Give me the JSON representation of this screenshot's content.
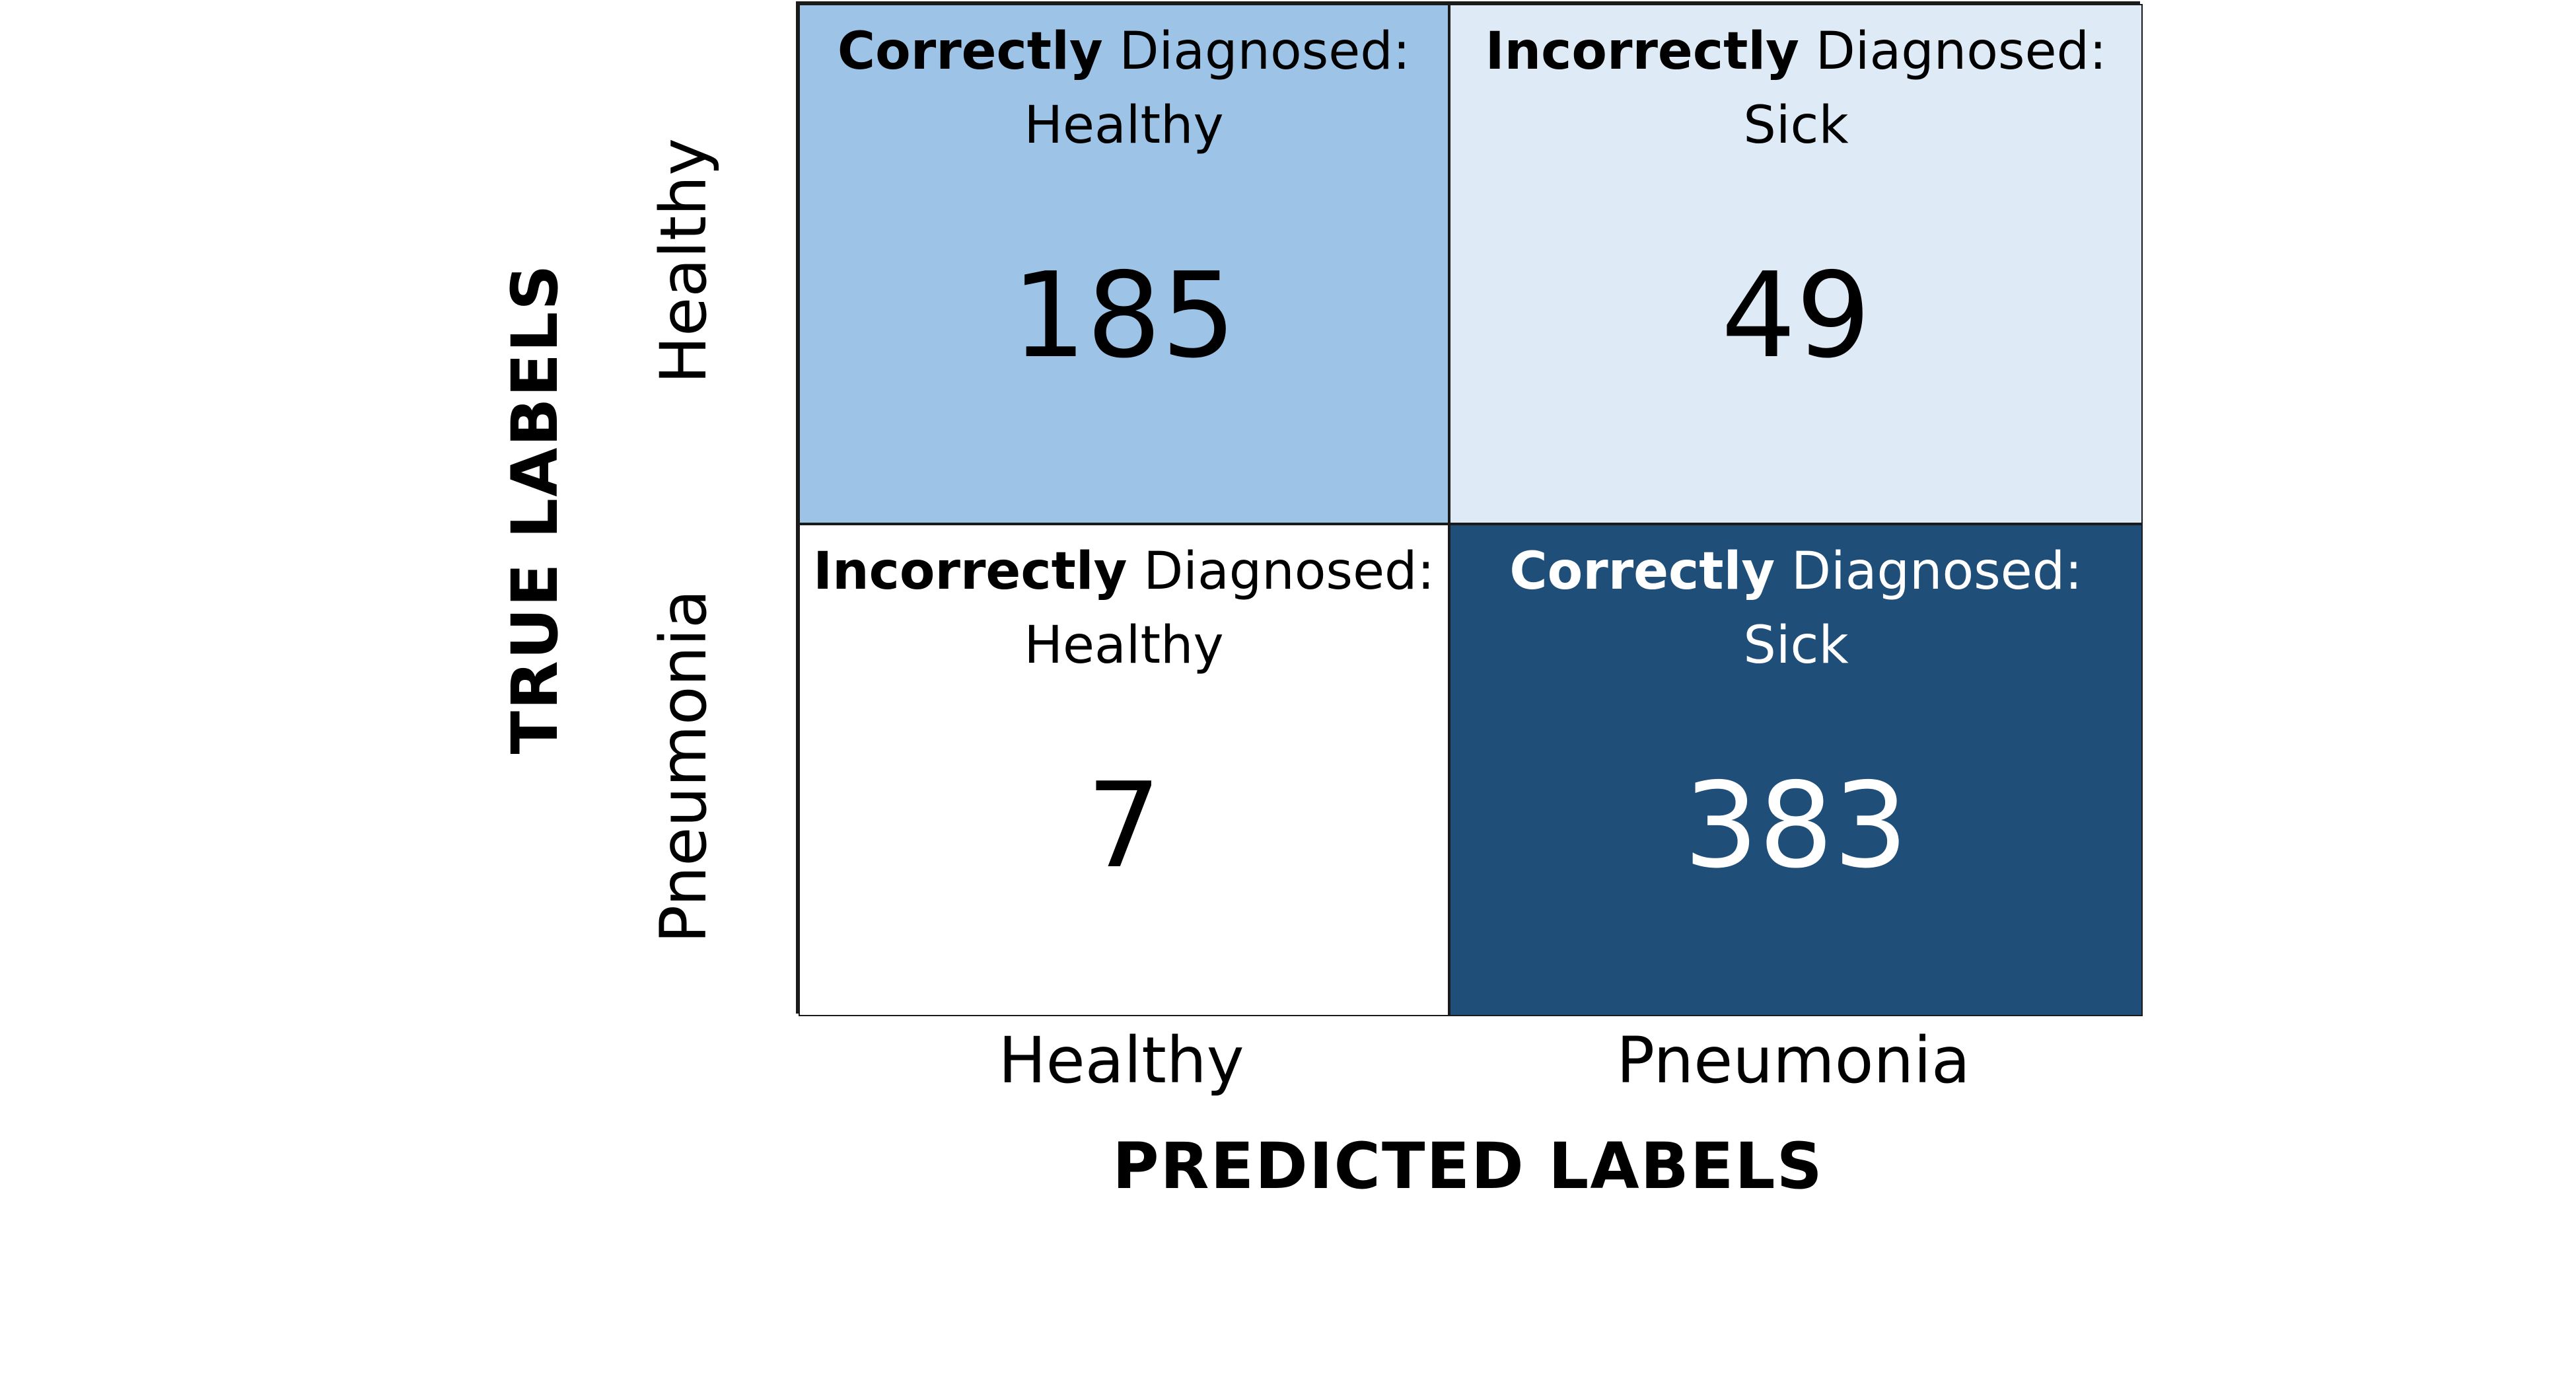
{
  "chart_data": {
    "type": "heatmap",
    "title": "",
    "xlabel": "PREDICTED LABELS",
    "ylabel": "TRUE LABELS",
    "x_categories": [
      "Healthy",
      "Pneumonia"
    ],
    "y_categories": [
      "Healthy",
      "Pneumonia"
    ],
    "values": [
      [
        185,
        49
      ],
      [
        7,
        383
      ]
    ],
    "cells": [
      [
        {
          "bold": "Correctly",
          "rest": " Diagnosed:",
          "line2": "Healthy",
          "value": 185,
          "color": "#9DC3E6",
          "text_color": "#000000"
        },
        {
          "bold": "Incorrectly",
          "rest": " Diagnosed:",
          "line2": "Sick",
          "value": 49,
          "color": "#DEEAF6",
          "text_color": "#000000"
        }
      ],
      [
        {
          "bold": "Incorrectly",
          "rest": " Diagnosed:",
          "line2": "Healthy",
          "value": 7,
          "color": "#FFFFFF",
          "text_color": "#000000"
        },
        {
          "bold": "Correctly",
          "rest": " Diagnosed:",
          "line2": "Sick",
          "value": 383,
          "color": "#1F4E79",
          "text_color": "#FFFFFF"
        }
      ]
    ],
    "colorscale": [
      "#FFFFFF",
      "#DEEAF6",
      "#9DC3E6",
      "#1F4E79"
    ],
    "legend": "none",
    "grid": false
  }
}
